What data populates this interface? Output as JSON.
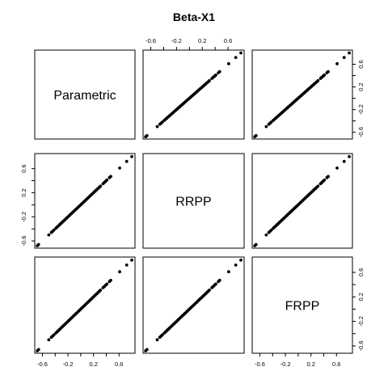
{
  "chart_data": {
    "type": "scatter",
    "title": "Beta-X1",
    "variables": [
      "Parametric",
      "RRPP",
      "FRPP"
    ],
    "xlim": [
      -0.72,
      0.85
    ],
    "ylim": [
      -0.72,
      0.85
    ],
    "ticks": [
      -0.6,
      -0.4,
      -0.2,
      0.0,
      0.2,
      0.4,
      0.6
    ],
    "tick_labels_shown": [
      "-0.6",
      "-0.2",
      "0.2",
      "0.6"
    ],
    "points": [
      [
        -0.68,
        -0.68
      ],
      [
        -0.66,
        -0.66
      ],
      [
        -0.5,
        -0.5
      ],
      [
        -0.46,
        -0.46
      ],
      [
        -0.44,
        -0.44
      ],
      [
        -0.42,
        -0.42
      ],
      [
        -0.39,
        -0.39
      ],
      [
        -0.37,
        -0.37
      ],
      [
        -0.35,
        -0.35
      ],
      [
        -0.33,
        -0.33
      ],
      [
        -0.31,
        -0.31
      ],
      [
        -0.29,
        -0.29
      ],
      [
        -0.27,
        -0.27
      ],
      [
        -0.25,
        -0.25
      ],
      [
        -0.23,
        -0.23
      ],
      [
        -0.21,
        -0.21
      ],
      [
        -0.19,
        -0.19
      ],
      [
        -0.17,
        -0.17
      ],
      [
        -0.15,
        -0.15
      ],
      [
        -0.13,
        -0.13
      ],
      [
        -0.11,
        -0.11
      ],
      [
        -0.09,
        -0.09
      ],
      [
        -0.07,
        -0.07
      ],
      [
        -0.05,
        -0.05
      ],
      [
        -0.03,
        -0.03
      ],
      [
        -0.01,
        -0.01
      ],
      [
        0.01,
        0.01
      ],
      [
        0.03,
        0.03
      ],
      [
        0.05,
        0.05
      ],
      [
        0.07,
        0.07
      ],
      [
        0.09,
        0.09
      ],
      [
        0.11,
        0.11
      ],
      [
        0.13,
        0.13
      ],
      [
        0.15,
        0.15
      ],
      [
        0.17,
        0.17
      ],
      [
        0.19,
        0.19
      ],
      [
        0.21,
        0.21
      ],
      [
        0.23,
        0.23
      ],
      [
        0.25,
        0.25
      ],
      [
        0.27,
        0.27
      ],
      [
        0.29,
        0.29
      ],
      [
        0.31,
        0.31
      ],
      [
        0.35,
        0.35
      ],
      [
        0.37,
        0.37
      ],
      [
        0.39,
        0.39
      ],
      [
        0.41,
        0.41
      ],
      [
        0.45,
        0.45
      ],
      [
        0.47,
        0.47
      ],
      [
        0.61,
        0.61
      ],
      [
        0.72,
        0.72
      ],
      [
        0.8,
        0.8
      ]
    ],
    "grid": false,
    "legend": "none"
  }
}
